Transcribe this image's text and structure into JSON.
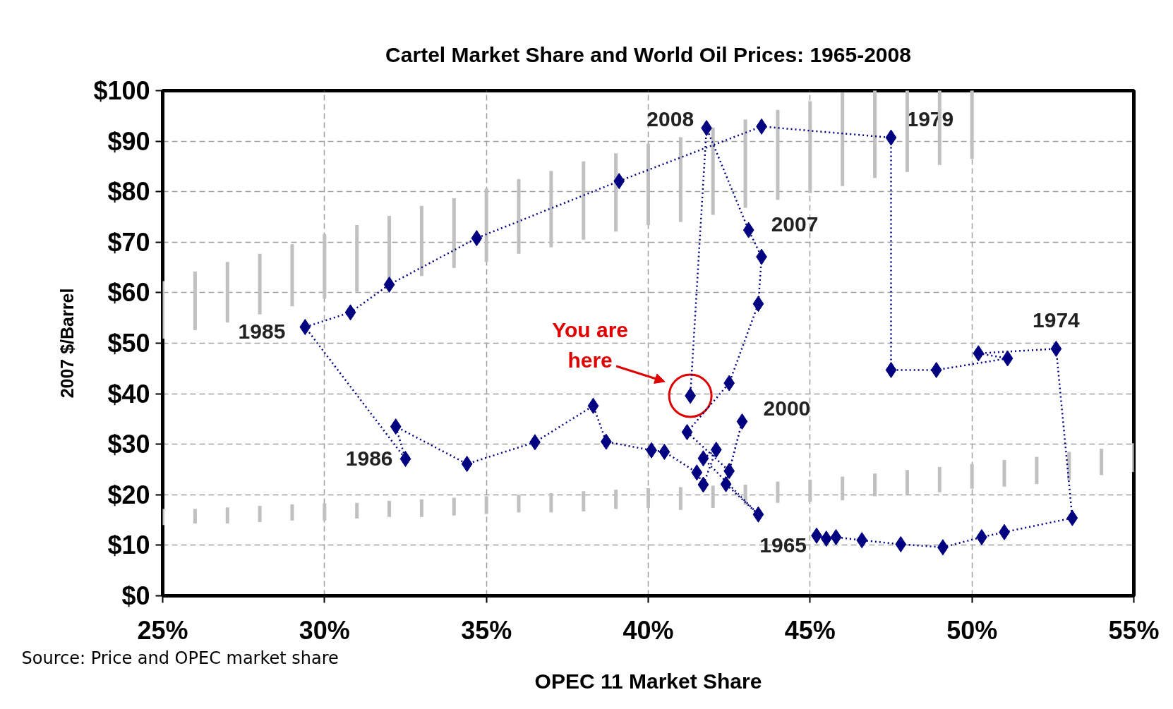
{
  "chart_data": {
    "type": "line",
    "title": "Cartel Market Share and World Oil Prices: 1965-2008",
    "xlabel": "OPEC 11 Market Share",
    "ylabel": "2007 $/Barrel",
    "xlim": [
      25,
      55
    ],
    "xticks": [
      {
        "value": 25,
        "label": "25%"
      },
      {
        "value": 30,
        "label": "30%"
      },
      {
        "value": 35,
        "label": "35%"
      },
      {
        "value": 40,
        "label": "40%"
      },
      {
        "value": 45,
        "label": "45%"
      },
      {
        "value": 50,
        "label": "50%"
      },
      {
        "value": 55,
        "label": "55%"
      }
    ],
    "ylim": [
      0,
      100
    ],
    "yticks": [
      {
        "value": 0,
        "label": "$0"
      },
      {
        "value": 10,
        "label": "$10"
      },
      {
        "value": 20,
        "label": "$20"
      },
      {
        "value": 30,
        "label": "$30"
      },
      {
        "value": 40,
        "label": "$40"
      },
      {
        "value": 50,
        "label": "$50"
      },
      {
        "value": 60,
        "label": "$60"
      },
      {
        "value": 70,
        "label": "$70"
      },
      {
        "value": 80,
        "label": "$80"
      },
      {
        "value": 90,
        "label": "$90"
      },
      {
        "value": 100,
        "label": "$100"
      }
    ],
    "grid": true,
    "series": [
      {
        "type": "bar",
        "color": "#c0c0c0",
        "x": [
          25,
          26,
          27,
          28,
          29,
          30,
          31,
          32,
          33,
          34,
          35,
          36,
          37,
          38,
          39,
          40,
          41,
          42,
          43,
          44,
          45,
          46,
          47,
          48,
          49,
          50
        ],
        "base": [
          50.9,
          52.6,
          54.1,
          55.7,
          57.3,
          58.8,
          60.2,
          61.7,
          63.3,
          64.9,
          66.1,
          67.7,
          69.0,
          70.5,
          72.1,
          73.4,
          74.0,
          75.4,
          76.8,
          78.4,
          79.7,
          81.1,
          82.7,
          83.9,
          85.3,
          86.5
        ],
        "values": [
          11.4,
          11.6,
          12.0,
          12.0,
          12.3,
          12.8,
          13.2,
          13.5,
          13.9,
          13.8,
          14.5,
          14.8,
          15.1,
          15.5,
          15.5,
          16.1,
          16.8,
          17.3,
          17.5,
          17.8,
          18.2,
          18.5,
          17.3,
          16.1,
          14.7,
          13.5
        ]
      },
      {
        "type": "bar",
        "color": "#c0c0c0",
        "x": [
          25,
          26,
          27,
          28,
          29,
          30,
          31,
          32,
          33,
          34,
          35,
          36,
          37,
          38,
          39,
          40,
          41,
          42,
          43,
          44,
          45,
          46,
          47,
          48,
          49,
          50,
          51,
          52,
          53,
          54,
          55
        ],
        "base": [
          14.0,
          14.3,
          14.3,
          14.6,
          14.9,
          14.9,
          15.3,
          15.6,
          15.6,
          15.9,
          16.2,
          16.5,
          16.5,
          16.7,
          17.2,
          17.4,
          17.0,
          17.4,
          18.0,
          18.4,
          18.6,
          18.9,
          19.7,
          20.0,
          20.5,
          21.2,
          21.6,
          22.1,
          22.9,
          23.9,
          24.5
        ],
        "values": [
          3.2,
          2.9,
          3.2,
          3.2,
          3.2,
          3.4,
          3.1,
          3.2,
          3.5,
          3.5,
          3.5,
          3.5,
          3.8,
          4.0,
          3.8,
          3.9,
          4.5,
          4.4,
          4.0,
          4.2,
          4.4,
          4.7,
          4.5,
          4.9,
          5.0,
          4.9,
          5.3,
          5.4,
          5.6,
          5.2,
          5.7
        ]
      },
      {
        "marker": "diamond",
        "line_style": "dotted",
        "color": "#000080",
        "x": [
          45.2,
          45.5,
          45.8,
          46.6,
          47.8,
          49.1,
          50.3,
          51.0,
          53.1,
          52.6,
          50.2,
          51.1,
          48.9,
          47.5,
          47.5,
          43.5,
          39.1,
          34.7,
          32.0,
          30.8,
          29.4,
          32.5,
          32.2,
          34.4,
          36.5,
          38.3,
          38.7,
          40.1,
          40.5,
          41.5,
          41.7,
          42.1,
          41.7,
          43.4,
          42.4,
          42.9,
          42.5,
          41.2,
          42.5,
          43.4,
          43.5,
          43.1,
          41.8,
          41.3
        ],
        "values": [
          11.9,
          11.3,
          11.6,
          11.0,
          10.2,
          9.6,
          11.6,
          12.6,
          15.4,
          48.9,
          48.0,
          47.0,
          44.7,
          44.7,
          90.7,
          92.9,
          82.1,
          70.8,
          61.6,
          56.1,
          53.2,
          27.1,
          33.5,
          26.1,
          30.4,
          37.6,
          30.5,
          28.8,
          28.5,
          24.4,
          22.0,
          28.9,
          27.2,
          16.1,
          22.1,
          34.5,
          24.7,
          32.4,
          42.1,
          57.8,
          67.1,
          72.4,
          92.6,
          39.6
        ]
      }
    ],
    "annotations": [
      {
        "text": "1965",
        "x": 45.2,
        "y": 11.9
      },
      {
        "text": "1974",
        "x": 52.6,
        "y": 48.9
      },
      {
        "text": "1979",
        "x": 47.5,
        "y": 90.7
      },
      {
        "text": "2008",
        "x": 41.8,
        "y": 92.6
      },
      {
        "text": "2007",
        "x": 43.1,
        "y": 72.4
      },
      {
        "text": "1985",
        "x": 29.4,
        "y": 53.2
      },
      {
        "text": "1986",
        "x": 32.5,
        "y": 27.1
      },
      {
        "text": "2000",
        "x": 42.9,
        "y": 34.5
      },
      "You are\nhere",
      "Source: Price and OPEC market share"
    ]
  }
}
